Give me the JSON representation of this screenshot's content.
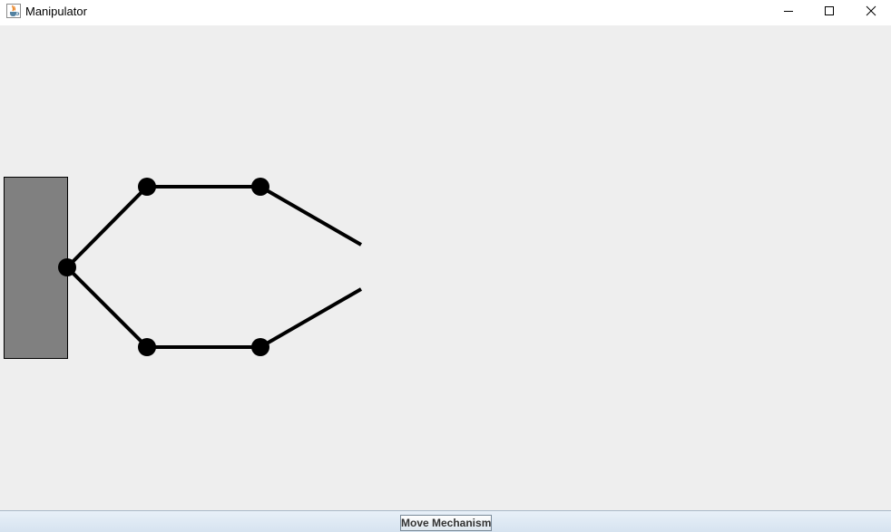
{
  "window": {
    "title": "Manipulator",
    "icon": "java-cup-icon",
    "controls": [
      "minimize-icon",
      "maximize-icon",
      "close-icon"
    ]
  },
  "colors": {
    "base_fill": "#808080",
    "links": "#000000",
    "background": "#eeeeee"
  },
  "toolbar": {
    "move_label": "Move Mechanism"
  }
}
